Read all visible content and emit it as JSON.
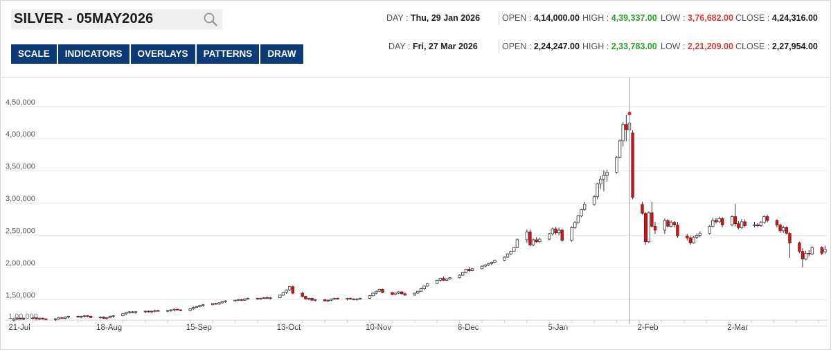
{
  "search": {
    "title": "SILVER - 05MAY2026",
    "icon": "search-icon"
  },
  "toolbar": {
    "buttons": [
      "SCALE",
      "INDICATORS",
      "OVERLAYS",
      "PATTERNS",
      "DRAW"
    ]
  },
  "ohlc_rows": [
    {
      "day_label": "DAY :",
      "day": "Thu, 29 Jan 2026",
      "open_label": "OPEN :",
      "open": "4,14,000.00",
      "high_label": "HIGH :",
      "high": "4,39,337.00",
      "low_label": "LOW :",
      "low": "3,76,682.00",
      "close_label": "CLOSE :",
      "close": "4,24,316.00"
    },
    {
      "day_label": "DAY :",
      "day": "Fri, 27 Mar 2026",
      "open_label": "OPEN :",
      "open": "2,24,247.00",
      "high_label": "HIGH :",
      "high": "2,33,783.00",
      "low_label": "LOW :",
      "low": "2,21,209.00",
      "close_label": "CLOSE :",
      "close": "2,27,954.00"
    }
  ],
  "colors": {
    "up": "#ffffff",
    "down": "#c8191d",
    "wick": "#333333",
    "high_text": "#28a228",
    "low_text": "#d93a3a",
    "button": "#0d3b78"
  },
  "chart_data": {
    "type": "candlestick",
    "title": "SILVER - 05MAY2026",
    "ylim": [
      118000,
      495000
    ],
    "yticks": [
      150000,
      200000,
      250000,
      300000,
      350000,
      400000,
      450000
    ],
    "ytick_labels": [
      "1,50,000",
      "2,00,000",
      "2,50,000",
      "3,00,000",
      "3,50,000",
      "4,00,000",
      "4,50,000"
    ],
    "bottom_tick_label": "1,00,000",
    "xlabels": [
      "21-Jul",
      "18-Aug",
      "15-Sep",
      "13-Oct",
      "10-Nov",
      "8-Dec",
      "5-Jan",
      "2-Feb",
      "2-Mar"
    ],
    "xlabel_days": [
      0,
      28,
      56,
      84,
      112,
      140,
      168,
      196,
      224
    ],
    "crosshair_day": 192,
    "highlight_point": {
      "day": 192,
      "value": 439337
    },
    "grid": "horizontal",
    "candles": [
      [
        0,
        118000,
        121000,
        116000,
        120000
      ],
      [
        1,
        120000,
        123000,
        118000,
        121000
      ],
      [
        2,
        121000,
        122000,
        119000,
        120000
      ],
      [
        3,
        120000,
        122000,
        118000,
        121000
      ],
      [
        6,
        121000,
        123000,
        119000,
        122000
      ],
      [
        7,
        122000,
        122000,
        119000,
        120000
      ],
      [
        8,
        120000,
        122000,
        118000,
        121000
      ],
      [
        9,
        121000,
        122000,
        119000,
        120000
      ],
      [
        10,
        120000,
        121000,
        118000,
        119000
      ],
      [
        13,
        119000,
        121000,
        117000,
        120000
      ],
      [
        14,
        120000,
        123000,
        119000,
        122000
      ],
      [
        15,
        122000,
        123000,
        120000,
        121000
      ],
      [
        16,
        121000,
        124000,
        120000,
        123000
      ],
      [
        17,
        123000,
        125000,
        121000,
        124000
      ],
      [
        20,
        124000,
        125000,
        122000,
        123000
      ],
      [
        21,
        123000,
        125000,
        121000,
        124000
      ],
      [
        22,
        124000,
        126000,
        122000,
        125000
      ],
      [
        23,
        125000,
        126000,
        123000,
        124000
      ],
      [
        24,
        124000,
        125000,
        121000,
        122000
      ],
      [
        27,
        122000,
        124000,
        120000,
        123000
      ],
      [
        28,
        123000,
        124000,
        120000,
        121000
      ],
      [
        29,
        121000,
        123000,
        119000,
        122000
      ],
      [
        30,
        122000,
        125000,
        121000,
        124000
      ],
      [
        31,
        124000,
        126000,
        122000,
        125000
      ],
      [
        34,
        125000,
        129000,
        124000,
        128000
      ],
      [
        35,
        128000,
        131000,
        126000,
        130000
      ],
      [
        36,
        130000,
        132000,
        128000,
        131000
      ],
      [
        37,
        131000,
        132000,
        129000,
        130000
      ],
      [
        38,
        130000,
        132000,
        128000,
        131000
      ],
      [
        41,
        131000,
        133000,
        129000,
        132000
      ],
      [
        42,
        132000,
        133000,
        130000,
        131000
      ],
      [
        43,
        131000,
        133000,
        129000,
        132000
      ],
      [
        44,
        132000,
        134000,
        130000,
        133000
      ],
      [
        45,
        133000,
        134000,
        131000,
        132000
      ],
      [
        48,
        132000,
        134000,
        130000,
        133000
      ],
      [
        49,
        133000,
        135000,
        131000,
        134000
      ],
      [
        50,
        134000,
        136000,
        132000,
        135000
      ],
      [
        51,
        135000,
        136000,
        133000,
        134000
      ],
      [
        52,
        134000,
        135000,
        132000,
        133000
      ],
      [
        55,
        133000,
        137000,
        132000,
        136000
      ],
      [
        56,
        136000,
        139000,
        134000,
        138000
      ],
      [
        57,
        138000,
        140000,
        137000,
        139000
      ],
      [
        58,
        139000,
        142000,
        138000,
        141000
      ],
      [
        59,
        141000,
        143000,
        139000,
        142000
      ],
      [
        62,
        142000,
        145000,
        141000,
        144000
      ],
      [
        63,
        144000,
        145000,
        142000,
        143000
      ],
      [
        64,
        143000,
        146000,
        142000,
        145000
      ],
      [
        65,
        145000,
        148000,
        144000,
        147000
      ],
      [
        66,
        147000,
        149000,
        145000,
        148000
      ],
      [
        69,
        148000,
        150000,
        147000,
        149000
      ],
      [
        70,
        149000,
        151000,
        148000,
        150000
      ],
      [
        71,
        150000,
        151000,
        148000,
        149000
      ],
      [
        72,
        149000,
        152000,
        148000,
        151000
      ],
      [
        73,
        151000,
        153000,
        150000,
        152000
      ],
      [
        76,
        152000,
        153000,
        150000,
        151000
      ],
      [
        77,
        151000,
        153000,
        150000,
        152000
      ],
      [
        78,
        152000,
        154000,
        151000,
        153000
      ],
      [
        79,
        153000,
        155000,
        151000,
        152000
      ],
      [
        80,
        152000,
        154000,
        150000,
        153000
      ],
      [
        83,
        153000,
        158000,
        152000,
        157000
      ],
      [
        84,
        157000,
        162000,
        156000,
        161000
      ],
      [
        85,
        161000,
        166000,
        159000,
        165000
      ],
      [
        86,
        165000,
        171000,
        163000,
        170000
      ],
      [
        87,
        170000,
        172000,
        158000,
        160000
      ],
      [
        90,
        160000,
        162000,
        153000,
        155000
      ],
      [
        91,
        155000,
        156000,
        150000,
        151000
      ],
      [
        92,
        151000,
        153000,
        149000,
        152000
      ],
      [
        93,
        152000,
        153000,
        148000,
        149000
      ],
      [
        94,
        149000,
        151000,
        147000,
        150000
      ],
      [
        97,
        150000,
        151000,
        147000,
        148000
      ],
      [
        98,
        148000,
        150000,
        146000,
        149000
      ],
      [
        99,
        149000,
        152000,
        148000,
        151000
      ],
      [
        100,
        151000,
        153000,
        150000,
        152000
      ],
      [
        101,
        152000,
        153000,
        150000,
        151000
      ],
      [
        104,
        151000,
        153000,
        149000,
        152000
      ],
      [
        105,
        152000,
        153000,
        150000,
        151000
      ],
      [
        106,
        151000,
        152000,
        149000,
        150000
      ],
      [
        107,
        150000,
        152000,
        148000,
        151000
      ],
      [
        108,
        151000,
        153000,
        150000,
        152000
      ],
      [
        111,
        152000,
        157000,
        151000,
        156000
      ],
      [
        112,
        156000,
        161000,
        155000,
        160000
      ],
      [
        113,
        160000,
        164000,
        158000,
        163000
      ],
      [
        114,
        163000,
        167000,
        162000,
        166000
      ],
      [
        115,
        166000,
        167000,
        160000,
        161000
      ],
      [
        118,
        161000,
        162000,
        157000,
        158000
      ],
      [
        119,
        158000,
        161000,
        157000,
        160000
      ],
      [
        120,
        160000,
        163000,
        159000,
        162000
      ],
      [
        121,
        162000,
        163000,
        158000,
        159000
      ],
      [
        122,
        159000,
        161000,
        156000,
        157000
      ],
      [
        125,
        157000,
        161000,
        156000,
        160000
      ],
      [
        126,
        160000,
        164000,
        159000,
        163000
      ],
      [
        127,
        163000,
        168000,
        162000,
        167000
      ],
      [
        128,
        167000,
        172000,
        165000,
        171000
      ],
      [
        129,
        171000,
        176000,
        170000,
        175000
      ],
      [
        132,
        175000,
        181000,
        174000,
        180000
      ],
      [
        133,
        180000,
        184000,
        178000,
        183000
      ],
      [
        134,
        183000,
        186000,
        179000,
        180000
      ],
      [
        135,
        180000,
        183000,
        179000,
        182000
      ],
      [
        136,
        182000,
        185000,
        181000,
        184000
      ],
      [
        139,
        184000,
        189000,
        183000,
        188000
      ],
      [
        140,
        188000,
        193000,
        187000,
        192000
      ],
      [
        141,
        192000,
        198000,
        191000,
        197000
      ],
      [
        142,
        197000,
        201000,
        193000,
        195000
      ],
      [
        143,
        195000,
        199000,
        194000,
        198000
      ],
      [
        146,
        198000,
        203000,
        197000,
        202000
      ],
      [
        147,
        202000,
        205000,
        200000,
        204000
      ],
      [
        148,
        204000,
        207000,
        202000,
        206000
      ],
      [
        149,
        206000,
        209000,
        204000,
        208000
      ],
      [
        150,
        208000,
        212000,
        207000,
        211000
      ],
      [
        153,
        211000,
        217000,
        210000,
        216000
      ],
      [
        154,
        216000,
        222000,
        215000,
        221000
      ],
      [
        155,
        221000,
        226000,
        219000,
        225000
      ],
      [
        156,
        225000,
        232000,
        224000,
        231000
      ],
      [
        157,
        231000,
        245000,
        230000,
        243000
      ],
      [
        160,
        243000,
        259000,
        238000,
        255000
      ],
      [
        161,
        255000,
        259000,
        233000,
        235000
      ],
      [
        162,
        235000,
        245000,
        233000,
        243000
      ],
      [
        163,
        243000,
        247000,
        238000,
        240000
      ],
      [
        164,
        240000,
        246000,
        238000,
        244000
      ],
      [
        167,
        244000,
        254000,
        242000,
        252000
      ],
      [
        168,
        252000,
        262000,
        250000,
        260000
      ],
      [
        169,
        260000,
        263000,
        251000,
        254000
      ],
      [
        170,
        254000,
        262000,
        250000,
        258000
      ],
      [
        171,
        258000,
        260000,
        240000,
        242000
      ],
      [
        174,
        242000,
        264000,
        240000,
        262000
      ],
      [
        175,
        262000,
        272000,
        260000,
        270000
      ],
      [
        176,
        270000,
        282000,
        268000,
        280000
      ],
      [
        177,
        280000,
        291000,
        278000,
        290000
      ],
      [
        178,
        290000,
        302000,
        288000,
        298000
      ],
      [
        181,
        298000,
        312000,
        296000,
        310000
      ],
      [
        182,
        310000,
        332000,
        306000,
        330000
      ],
      [
        183,
        330000,
        342000,
        322000,
        337000
      ],
      [
        184,
        337000,
        351000,
        318000,
        343000
      ],
      [
        185,
        343000,
        352000,
        333000,
        348000
      ],
      [
        188,
        348000,
        373000,
        346000,
        371000
      ],
      [
        189,
        371000,
        399000,
        370000,
        397000
      ],
      [
        190,
        397000,
        426000,
        388000,
        422000
      ],
      [
        191,
        422000,
        437000,
        396000,
        414000
      ],
      [
        192,
        414000,
        439337,
        376682,
        424316
      ],
      [
        193,
        409000,
        413000,
        306000,
        309000
      ],
      [
        196,
        298000,
        302000,
        282000,
        284000
      ],
      [
        197,
        284000,
        286000,
        235000,
        240000
      ],
      [
        198,
        240000,
        287000,
        238000,
        285000
      ],
      [
        199,
        285000,
        302000,
        262000,
        264000
      ],
      [
        200,
        264000,
        271000,
        252000,
        258000
      ],
      [
        203,
        258000,
        276000,
        252000,
        273000
      ],
      [
        204,
        273000,
        275000,
        262000,
        264000
      ],
      [
        205,
        264000,
        273000,
        262000,
        270000
      ],
      [
        206,
        270000,
        272000,
        262000,
        266000
      ],
      [
        207,
        266000,
        271000,
        246000,
        249000
      ],
      [
        210,
        249000,
        252000,
        242000,
        246000
      ],
      [
        211,
        246000,
        249000,
        235000,
        238000
      ],
      [
        212,
        238000,
        249000,
        237000,
        247000
      ],
      [
        213,
        247000,
        253000,
        244000,
        250000
      ],
      [
        214,
        250000,
        256000,
        247000,
        253000
      ],
      [
        217,
        253000,
        266000,
        251000,
        264000
      ],
      [
        218,
        264000,
        277000,
        262000,
        273000
      ],
      [
        219,
        273000,
        277000,
        268000,
        271000
      ],
      [
        220,
        271000,
        279000,
        269000,
        276000
      ],
      [
        221,
        276000,
        278000,
        262000,
        266000
      ],
      [
        224,
        266000,
        281000,
        264000,
        279000
      ],
      [
        225,
        279000,
        299000,
        264000,
        268000
      ],
      [
        226,
        268000,
        272000,
        259000,
        262000
      ],
      [
        227,
        262000,
        275000,
        260000,
        271000
      ],
      [
        228,
        271000,
        275000,
        262000,
        265000
      ],
      [
        231,
        265000,
        271000,
        262000,
        266000
      ],
      [
        232,
        266000,
        269000,
        262000,
        265000
      ],
      [
        233,
        265000,
        272000,
        263000,
        270000
      ],
      [
        234,
        270000,
        281000,
        268000,
        279000
      ],
      [
        235,
        279000,
        282000,
        270000,
        273000
      ],
      [
        238,
        273000,
        275000,
        262000,
        266000
      ],
      [
        239,
        266000,
        268000,
        254000,
        257000
      ],
      [
        240,
        257000,
        265000,
        254000,
        262000
      ],
      [
        241,
        262000,
        264000,
        251000,
        253000
      ],
      [
        242,
        253000,
        255000,
        215000,
        238000
      ],
      [
        245,
        238000,
        240000,
        222000,
        225000
      ],
      [
        246,
        225000,
        230000,
        200000,
        213000
      ],
      [
        247,
        213000,
        226000,
        211000,
        222000
      ],
      [
        248,
        222000,
        227000,
        217000,
        221000
      ],
      [
        249,
        221000,
        233000,
        219000,
        231000
      ],
      [
        252,
        231000,
        233000,
        219000,
        222000
      ],
      [
        253,
        224247,
        233783,
        221209,
        227954
      ]
    ]
  }
}
